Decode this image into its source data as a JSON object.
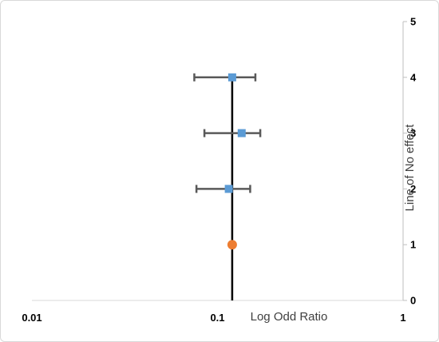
{
  "chart_data": {
    "type": "scatter",
    "xlabel": "Log Odd Ratio",
    "ylabel": "Line of No effect",
    "x_scale": "log",
    "xlim": [
      0.01,
      1
    ],
    "ylim": [
      0,
      5
    ],
    "x_ticks": [
      "0.01",
      "0.1",
      "1"
    ],
    "y_ticks": [
      "0",
      "1",
      "2",
      "3",
      "4",
      "5"
    ],
    "grid": false,
    "reference_line_x": 0.12,
    "colors": {
      "study": "#5b9bd5",
      "pooled": "#ed7d31",
      "error_bar": "#595959",
      "reference_line": "#000000"
    },
    "points": [
      {
        "x": 0.115,
        "y": 2,
        "ci": [
          0.077,
          0.15
        ],
        "kind": "study",
        "marker": "square"
      },
      {
        "x": 0.135,
        "y": 3,
        "ci": [
          0.085,
          0.17
        ],
        "kind": "study",
        "marker": "square"
      },
      {
        "x": 0.12,
        "y": 4,
        "ci": [
          0.075,
          0.16
        ],
        "kind": "study",
        "marker": "square"
      },
      {
        "x": 0.12,
        "y": 1,
        "ci": null,
        "kind": "pooled",
        "marker": "circle"
      }
    ]
  }
}
